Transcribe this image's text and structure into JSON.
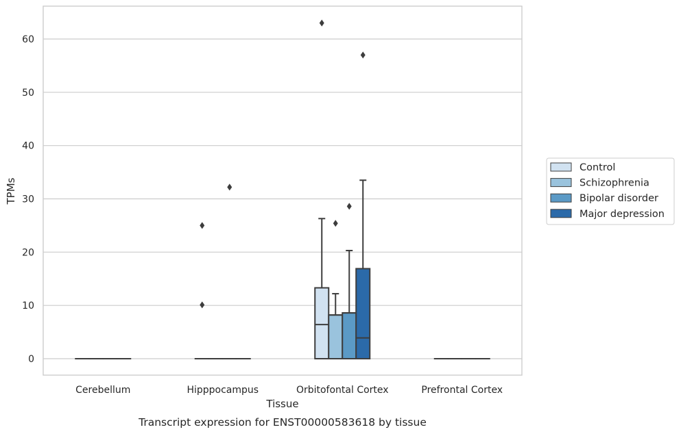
{
  "chart_data": {
    "type": "box",
    "xlabel": "Tissue",
    "ylabel": "TPMs",
    "caption": "Transcript expression for ENST00000583618 by tissue",
    "categories": [
      "Cerebellum",
      "Hipppocampus",
      "Orbitofontal Cortex",
      "Prefrontal Cortex"
    ],
    "yticks": [
      0,
      10,
      20,
      30,
      40,
      50,
      60
    ],
    "ylim": [
      -3,
      66
    ],
    "grid": "horizontal",
    "legend_position": "right",
    "series": [
      {
        "name": "Control",
        "color": "#d1e2f1",
        "boxes": [
          {
            "q1": 0,
            "median": 0,
            "q3": 0,
            "whisker_low": 0,
            "whisker_high": 0,
            "outliers": []
          },
          {
            "q1": 0,
            "median": 0,
            "q3": 0,
            "whisker_low": 0,
            "whisker_high": 0,
            "outliers": [
              25,
              10.1
            ]
          },
          {
            "q1": 0,
            "median": 6.4,
            "q3": 13.3,
            "whisker_low": 0,
            "whisker_high": 26.3,
            "outliers": [
              63
            ]
          },
          {
            "q1": 0,
            "median": 0,
            "q3": 0,
            "whisker_low": 0,
            "whisker_high": 0,
            "outliers": []
          }
        ]
      },
      {
        "name": "Schizophrenia",
        "color": "#9ac3dd",
        "boxes": [
          {
            "q1": 0,
            "median": 0,
            "q3": 0,
            "whisker_low": 0,
            "whisker_high": 0,
            "outliers": []
          },
          {
            "q1": 0,
            "median": 0,
            "q3": 0,
            "whisker_low": 0,
            "whisker_high": 0,
            "outliers": []
          },
          {
            "q1": 0,
            "median": 8.2,
            "q3": 8.2,
            "whisker_low": 0,
            "whisker_high": 12.2,
            "outliers": [
              25.4
            ]
          },
          {
            "q1": 0,
            "median": 0,
            "q3": 0,
            "whisker_low": 0,
            "whisker_high": 0,
            "outliers": []
          }
        ]
      },
      {
        "name": "Bipolar disorder",
        "color": "#5b9ac6",
        "boxes": [
          {
            "q1": 0,
            "median": 0,
            "q3": 0,
            "whisker_low": 0,
            "whisker_high": 0,
            "outliers": []
          },
          {
            "q1": 0,
            "median": 0,
            "q3": 0,
            "whisker_low": 0,
            "whisker_high": 0,
            "outliers": [
              32.2
            ]
          },
          {
            "q1": 0,
            "median": 8.6,
            "q3": 8.6,
            "whisker_low": 0,
            "whisker_high": 20.3,
            "outliers": [
              28.6
            ]
          },
          {
            "q1": 0,
            "median": 0,
            "q3": 0,
            "whisker_low": 0,
            "whisker_high": 0,
            "outliers": []
          }
        ]
      },
      {
        "name": "Major depression",
        "color": "#2b6aa9",
        "boxes": [
          {
            "q1": 0,
            "median": 0,
            "q3": 0,
            "whisker_low": 0,
            "whisker_high": 0,
            "outliers": []
          },
          {
            "q1": 0,
            "median": 0,
            "q3": 0,
            "whisker_low": 0,
            "whisker_high": 0,
            "outliers": []
          },
          {
            "q1": 0,
            "median": 3.9,
            "q3": 16.9,
            "whisker_low": 0,
            "whisker_high": 33.5,
            "outliers": [
              57
            ]
          },
          {
            "q1": 0,
            "median": 0,
            "q3": 0,
            "whisker_low": 0,
            "whisker_high": 0,
            "outliers": []
          }
        ]
      }
    ]
  }
}
